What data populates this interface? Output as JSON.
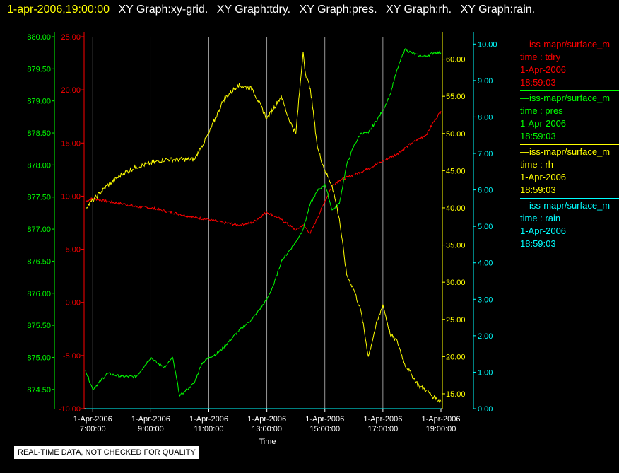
{
  "header": {
    "timestamp": "1-apr-2006,19:00:00",
    "graph_titles": [
      "XY Graph:xy-grid.",
      "XY Graph:tdry.",
      "XY Graph:pres.",
      "XY Graph:rh.",
      "XY Graph:rain."
    ]
  },
  "notice": "REAL-TIME DATA, NOT CHECKED FOR QUALITY",
  "legend": [
    {
      "source": "—iss-mapr/surface_m",
      "variable": "time : tdry",
      "date": "1-Apr-2006",
      "time": "18:59:03",
      "color": "#ff0000"
    },
    {
      "source": "—iss-mapr/surface_m",
      "variable": "time : pres",
      "date": "1-Apr-2006",
      "time": "18:59:03",
      "color": "#00ff00"
    },
    {
      "source": "—iss-mapr/surface_m",
      "variable": "time : rh",
      "date": "1-Apr-2006",
      "time": "18:59:03",
      "color": "#ffff00"
    },
    {
      "source": "—iss-mapr/surface_m",
      "variable": "time : rain",
      "date": "1-Apr-2006",
      "time": "18:59:03",
      "color": "#00ffff"
    }
  ],
  "chart_data": {
    "type": "line",
    "xlabel": "Time",
    "xlim": [
      "1-Apr-2006 06:45",
      "1-Apr-2006 19:00"
    ],
    "x_ticks": [
      {
        "date": "1-Apr-2006",
        "time": "7:00:00"
      },
      {
        "date": "1-Apr-2006",
        "time": "9:00:00"
      },
      {
        "date": "1-Apr-2006",
        "time": "11:00:00"
      },
      {
        "date": "1-Apr-2006",
        "time": "13:00:00"
      },
      {
        "date": "1-Apr-2006",
        "time": "15:00:00"
      },
      {
        "date": "1-Apr-2006",
        "time": "17:00:00"
      },
      {
        "date": "1-Apr-2006",
        "time": "19:00:00"
      }
    ],
    "grid_x": true,
    "axes": [
      {
        "id": "pres",
        "color": "#00ff00",
        "ylim": [
          874.2,
          880.0
        ],
        "ticks": [
          "880.00",
          "879.50",
          "879.00",
          "878.50",
          "878.00",
          "877.50",
          "877.00",
          "876.50",
          "876.00",
          "875.50",
          "875.00",
          "874.50"
        ]
      },
      {
        "id": "tdry",
        "color": "#ff0000",
        "ylim": [
          -10.0,
          25.0
        ],
        "ticks": [
          "25.00",
          "20.00",
          "15.00",
          "10.00",
          "5.00",
          "0.00",
          "-5.00",
          "-10.00"
        ]
      },
      {
        "id": "rh",
        "color": "#ffff00",
        "ylim": [
          13.0,
          63.0
        ],
        "ticks": [
          "60.00",
          "55.00",
          "50.00",
          "45.00",
          "40.00",
          "35.00",
          "30.00",
          "25.00",
          "20.00",
          "15.00"
        ]
      },
      {
        "id": "rain",
        "color": "#00ffff",
        "ylim": [
          0.0,
          10.2
        ],
        "ticks": [
          "10.00",
          "9.00",
          "8.00",
          "7.00",
          "6.00",
          "5.00",
          "4.00",
          "3.00",
          "2.00",
          "1.00",
          "0.00"
        ]
      }
    ],
    "series": [
      {
        "name": "tdry",
        "axis": "tdry",
        "color": "#ff0000",
        "x": [
          "06:45",
          "07:00",
          "07:30",
          "08:00",
          "08:30",
          "09:00",
          "09:30",
          "10:00",
          "10:30",
          "11:00",
          "11:30",
          "12:00",
          "12:30",
          "13:00",
          "13:30",
          "14:00",
          "14:15",
          "14:30",
          "15:00",
          "15:15",
          "15:30",
          "16:00",
          "16:30",
          "17:00",
          "17:30",
          "18:00",
          "18:30",
          "18:45",
          "19:00"
        ],
        "y": [
          9.5,
          9.8,
          9.5,
          9.3,
          9.0,
          8.9,
          8.6,
          8.3,
          8.0,
          7.8,
          7.5,
          7.3,
          7.5,
          8.5,
          7.8,
          6.8,
          7.3,
          6.5,
          9.5,
          11.0,
          11.5,
          12.0,
          12.6,
          13.3,
          14.0,
          15.0,
          15.8,
          17.0,
          18.0
        ]
      },
      {
        "name": "pres",
        "axis": "pres",
        "color": "#00ff00",
        "x": [
          "06:45",
          "07:00",
          "07:30",
          "08:00",
          "08:30",
          "09:00",
          "09:15",
          "09:30",
          "09:45",
          "10:00",
          "10:15",
          "10:30",
          "10:45",
          "11:00",
          "11:15",
          "11:30",
          "12:00",
          "12:30",
          "13:00",
          "13:15",
          "13:30",
          "14:00",
          "14:15",
          "14:30",
          "14:45",
          "15:00",
          "15:15",
          "15:30",
          "15:45",
          "16:00",
          "16:15",
          "16:30",
          "17:00",
          "17:15",
          "17:30",
          "17:45",
          "18:00",
          "18:15",
          "18:30",
          "18:45",
          "19:00"
        ],
        "y": [
          874.8,
          874.5,
          874.75,
          874.7,
          874.7,
          875.0,
          874.9,
          874.85,
          875.0,
          874.4,
          874.5,
          874.6,
          874.9,
          875.0,
          875.05,
          875.15,
          875.4,
          875.6,
          875.9,
          876.15,
          876.5,
          876.8,
          877.0,
          877.4,
          877.6,
          877.7,
          877.3,
          877.4,
          878.0,
          878.3,
          878.5,
          878.5,
          878.85,
          879.1,
          879.5,
          879.8,
          879.75,
          879.7,
          879.7,
          879.75,
          879.75
        ]
      },
      {
        "name": "rh",
        "axis": "rh",
        "color": "#ffff00",
        "x": [
          "06:45",
          "07:00",
          "07:30",
          "08:00",
          "08:30",
          "09:00",
          "09:30",
          "10:00",
          "10:30",
          "11:00",
          "11:30",
          "12:00",
          "12:30",
          "13:00",
          "13:30",
          "13:45",
          "14:00",
          "14:15",
          "14:20",
          "14:30",
          "14:45",
          "15:00",
          "15:15",
          "15:30",
          "15:45",
          "16:00",
          "16:15",
          "16:30",
          "16:45",
          "17:00",
          "17:15",
          "17:30",
          "17:45",
          "18:00",
          "18:15",
          "18:30",
          "18:45",
          "19:00"
        ],
        "y": [
          40.0,
          41.0,
          43.0,
          44.5,
          45.5,
          46.0,
          46.5,
          46.5,
          46.5,
          50.0,
          54.5,
          56.5,
          56.0,
          52.0,
          55.0,
          52.0,
          50.0,
          61.0,
          58.0,
          56.0,
          48.0,
          45.0,
          43.0,
          38.5,
          31.0,
          29.0,
          26.0,
          20.0,
          24.0,
          27.0,
          23.0,
          22.0,
          19.0,
          17.5,
          16.0,
          15.5,
          14.5,
          14.0
        ]
      },
      {
        "name": "rain",
        "axis": "rain",
        "color": "#00ffff",
        "x": [
          "06:45",
          "19:00"
        ],
        "y": [
          0.0,
          0.0
        ]
      }
    ]
  }
}
